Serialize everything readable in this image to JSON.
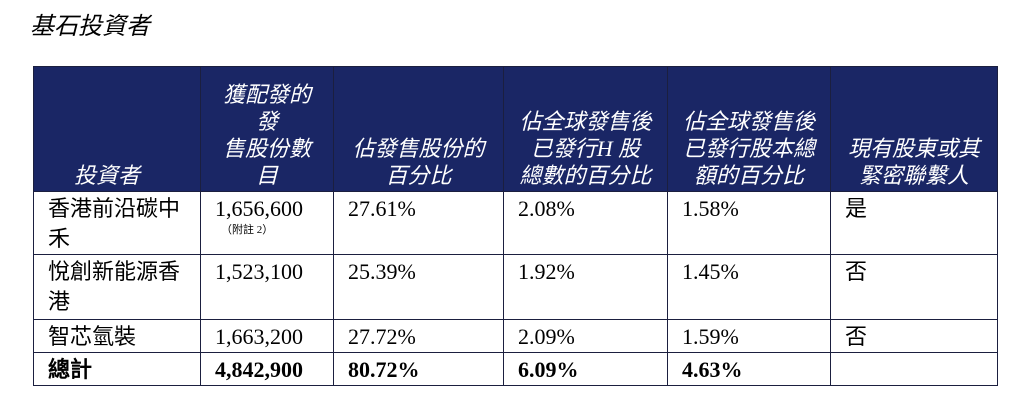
{
  "title": "基石投資者",
  "table": {
    "header": [
      [
        "投資者"
      ],
      [
        "獲配發的",
        "發",
        "售股份數",
        "目"
      ],
      [
        "佔發售股份的",
        "百分比"
      ],
      [
        "佔全球發售後",
        "已發行H 股",
        "總數的百分比"
      ],
      [
        "佔全球發售後",
        "已發行股本總",
        "額的百分比"
      ],
      [
        "現有股東或其",
        "緊密聯繫人"
      ]
    ],
    "rows": [
      [
        "香港前沿碳中禾",
        "1,656,600",
        "27.61%",
        "2.08%",
        "1.58%",
        "是"
      ],
      [
        "悅創新能源香港",
        "1,523,100",
        "25.39%",
        "1.92%",
        "1.45%",
        "否"
      ],
      [
        "智芯氫裝",
        "1,663,200",
        "27.72%",
        "2.09%",
        "1.59%",
        "否"
      ]
    ],
    "note": "（附註 2）",
    "total": [
      "總計",
      "4,842,900",
      "80.72%",
      "6.09%",
      "4.63%",
      ""
    ]
  }
}
